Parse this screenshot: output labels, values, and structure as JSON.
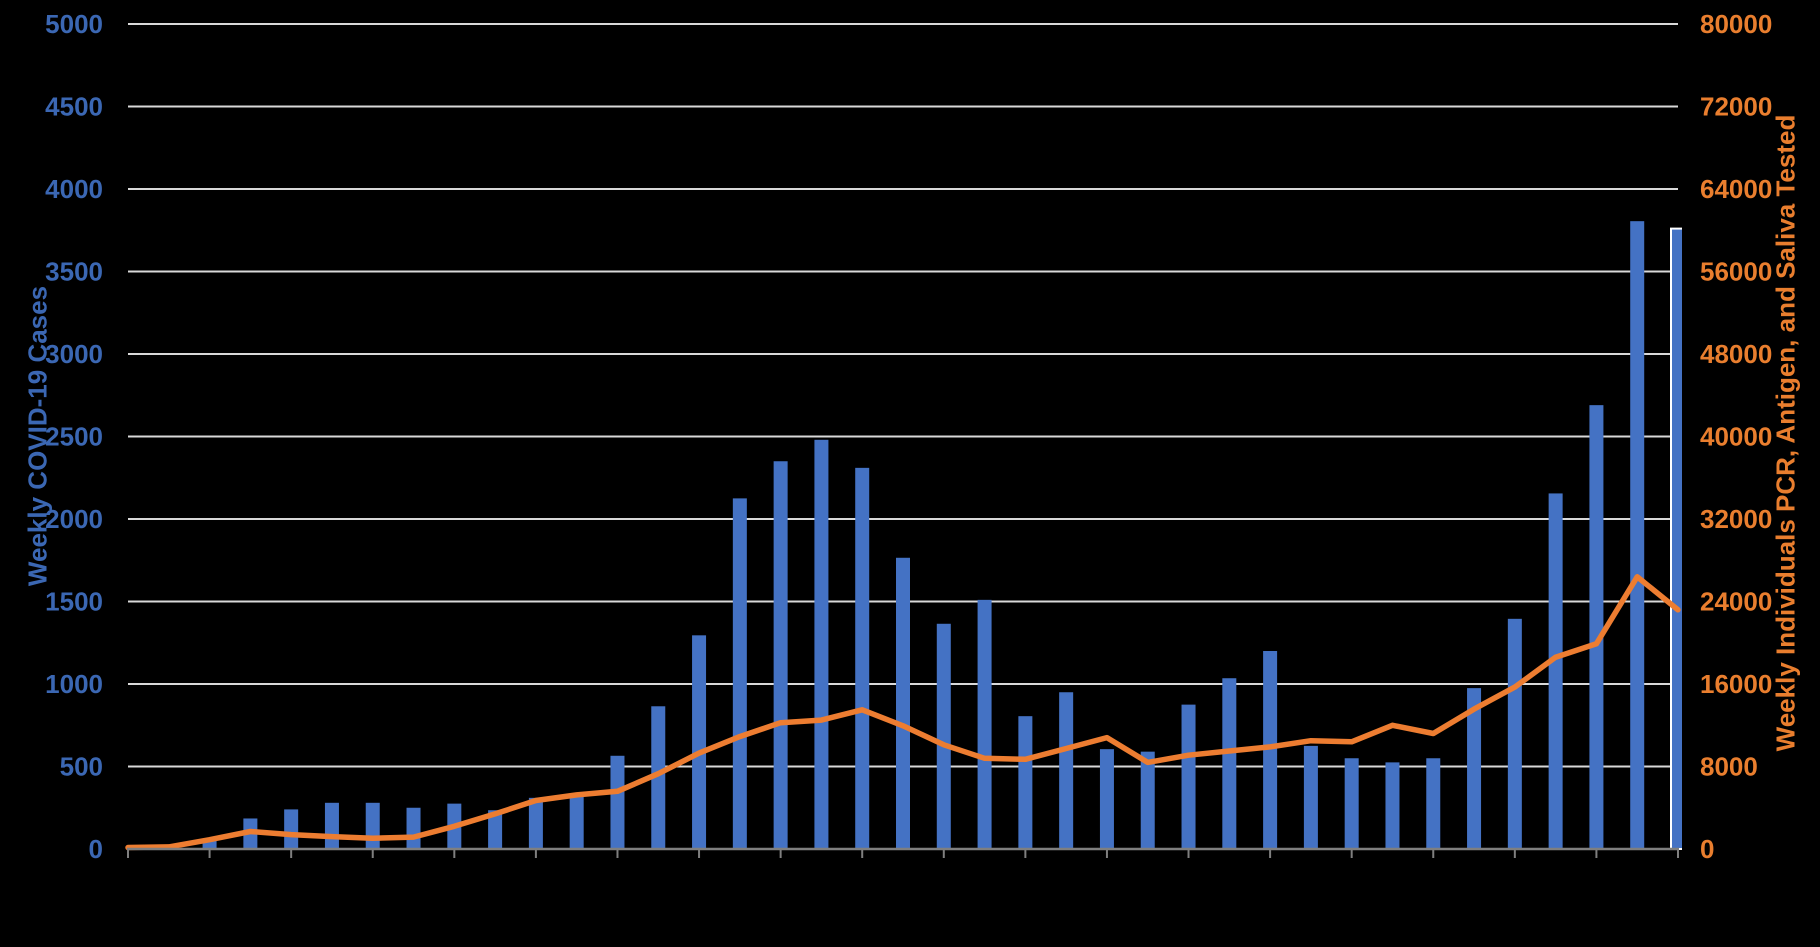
{
  "chart_data": {
    "type": "bar",
    "subtype": "combo-bar-line-dual-axis",
    "background": "#000000",
    "num_weeks": 39,
    "x_axis": {
      "labels_visible": false,
      "tick_count": 20,
      "axis_color": "#7F7F7F"
    },
    "left_axis": {
      "title": "Weekly COVID-19 Cases",
      "min": 0,
      "max": 5000,
      "step": 500,
      "tick_labels": [
        "0",
        "500",
        "1000",
        "1500",
        "2000",
        "2500",
        "3000",
        "3500",
        "4000",
        "4500",
        "5000"
      ],
      "color": "#3B67B3"
    },
    "right_axis": {
      "title": "Weekly Individuals PCR, Antigen, and Saliva Tested",
      "min": 0,
      "max": 80000,
      "step": 8000,
      "tick_labels": [
        "0",
        "8000",
        "16000",
        "24000",
        "32000",
        "40000",
        "48000",
        "56000",
        "64000",
        "72000",
        "80000"
      ],
      "color": "#E97E2E"
    },
    "grid": {
      "horizontal": true,
      "color": "#D9D9D9"
    },
    "series": [
      {
        "name": "weekly-covid-19-cases",
        "type": "bar",
        "axis": "left",
        "color": "#4472C4",
        "values": [
          20,
          0,
          55,
          185,
          240,
          280,
          280,
          250,
          275,
          235,
          310,
          330,
          565,
          865,
          1295,
          2125,
          2350,
          2480,
          2310,
          1765,
          1365,
          1510,
          805,
          950,
          605,
          590,
          875,
          1035,
          1200,
          625,
          550,
          525,
          550,
          975,
          1395,
          2155,
          2690,
          3805,
          3760
        ]
      },
      {
        "name": "weekly-individuals-tested",
        "type": "line",
        "axis": "right",
        "color": "#ED7D31",
        "values": [
          150,
          200,
          900,
          1700,
          1400,
          1200,
          1050,
          1150,
          2200,
          3400,
          4700,
          5250,
          5600,
          7300,
          9300,
          10900,
          12250,
          12500,
          13500,
          11950,
          10100,
          8800,
          8700,
          9750,
          10800,
          8400,
          9100,
          9500,
          9900,
          10500,
          10400,
          12000,
          11200,
          13570,
          15700,
          18600,
          19900,
          26400,
          23200
        ]
      }
    ],
    "last_bar_outline_color": "#FFFFFF"
  }
}
